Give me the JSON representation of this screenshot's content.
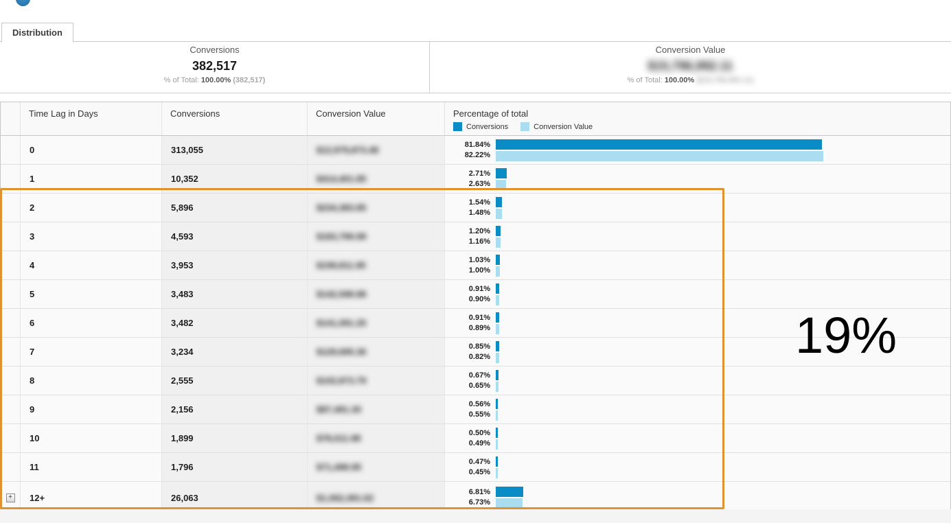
{
  "header": {
    "tab_label": "Distribution"
  },
  "summary": {
    "conversions": {
      "label": "Conversions",
      "value": "382,517",
      "pct_prefix": "% of Total:",
      "pct_value": "100.00%",
      "pct_paren": "(382,517)"
    },
    "conversion_value": {
      "label": "Conversion Value",
      "value_blurred": "$15,796,992.11",
      "pct_prefix": "% of Total:",
      "pct_value": "100.00%",
      "pct_paren_blurred": "($15,796,992.11)"
    }
  },
  "table": {
    "columns": [
      "",
      "Time Lag in Days",
      "Conversions",
      "Conversion Value",
      "Percentage of total"
    ],
    "legend": [
      {
        "label": "Conversions",
        "color": "#0a8cc7"
      },
      {
        "label": "Conversion Value",
        "color": "#abddf1"
      }
    ],
    "rows": [
      {
        "time_lag": "0",
        "conversions": "313,055",
        "conversion_value_blurred": "$12,979,873.48",
        "pct_conversions": "81.84%",
        "pct_value": "82.22%",
        "expandable": false
      },
      {
        "time_lag": "1",
        "conversions": "10,352",
        "conversion_value_blurred": "$414,401.85",
        "pct_conversions": "2.71%",
        "pct_value": "2.63%",
        "expandable": false
      },
      {
        "time_lag": "2",
        "conversions": "5,896",
        "conversion_value_blurred": "$234,383.85",
        "pct_conversions": "1.54%",
        "pct_value": "1.48%",
        "expandable": false
      },
      {
        "time_lag": "3",
        "conversions": "4,593",
        "conversion_value_blurred": "$183,799.99",
        "pct_conversions": "1.20%",
        "pct_value": "1.16%",
        "expandable": false
      },
      {
        "time_lag": "4",
        "conversions": "3,953",
        "conversion_value_blurred": "$158,811.95",
        "pct_conversions": "1.03%",
        "pct_value": "1.00%",
        "expandable": false
      },
      {
        "time_lag": "5",
        "conversions": "3,483",
        "conversion_value_blurred": "$142,598.88",
        "pct_conversions": "0.91%",
        "pct_value": "0.90%",
        "expandable": false
      },
      {
        "time_lag": "6",
        "conversions": "3,482",
        "conversion_value_blurred": "$141,091.25",
        "pct_conversions": "0.91%",
        "pct_value": "0.89%",
        "expandable": false
      },
      {
        "time_lag": "7",
        "conversions": "3,234",
        "conversion_value_blurred": "$129,695.36",
        "pct_conversions": "0.85%",
        "pct_value": "0.82%",
        "expandable": false
      },
      {
        "time_lag": "8",
        "conversions": "2,555",
        "conversion_value_blurred": "$102,873.79",
        "pct_conversions": "0.67%",
        "pct_value": "0.65%",
        "expandable": false
      },
      {
        "time_lag": "9",
        "conversions": "2,156",
        "conversion_value_blurred": "$87,491.30",
        "pct_conversions": "0.56%",
        "pct_value": "0.55%",
        "expandable": false
      },
      {
        "time_lag": "10",
        "conversions": "1,899",
        "conversion_value_blurred": "$78,011.98",
        "pct_conversions": "0.50%",
        "pct_value": "0.49%",
        "expandable": false
      },
      {
        "time_lag": "11",
        "conversions": "1,796",
        "conversion_value_blurred": "$71,498.95",
        "pct_conversions": "0.47%",
        "pct_value": "0.45%",
        "expandable": false
      },
      {
        "time_lag": "12+",
        "conversions": "26,063",
        "conversion_value_blurred": "$1,062,491.62",
        "pct_conversions": "6.81%",
        "pct_value": "6.73%",
        "expandable": true
      }
    ],
    "expander_glyph": "+"
  },
  "annotation": {
    "note": "19%"
  },
  "colors": {
    "bar_conversions": "#0a8cc7",
    "bar_conversion_value": "#abddf1",
    "highlight_border": "#e0922f"
  }
}
